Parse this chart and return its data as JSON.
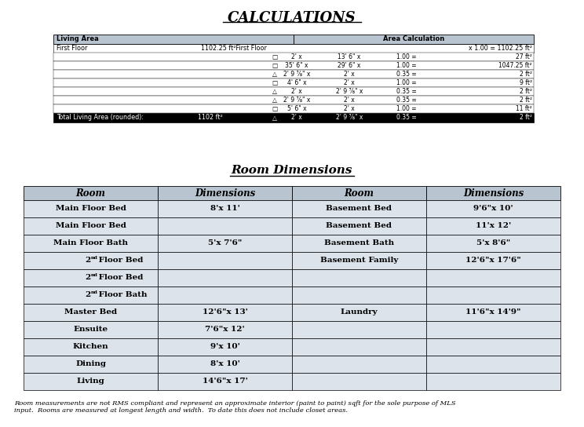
{
  "title": "CALCULATIONS",
  "calc_headers": [
    "Living Area",
    "Area Calculation"
  ],
  "first_floor_label": "First Floor",
  "first_floor_mid": "1102.25 ft²First Floor",
  "first_floor_right": "x 1.00 = 1102.25 ft²",
  "calc_rows": [
    {
      "□": true,
      "c1": "2' x",
      "c2": "13' 6\" x",
      "c3": "1.00 =",
      "c4": "27 ft²"
    },
    {
      "□": true,
      "c1": "35' 6\" x",
      "c2": "29' 6\" x",
      "c3": "1.00 =",
      "c4": "1047.25 ft²"
    },
    {
      "△": true,
      "c1": "2' 9 ⅞\" x",
      "c2": "2' x",
      "c3": "0.35 =",
      "c4": "2 ft²"
    },
    {
      "□": true,
      "c1": "4' 6\" x",
      "c2": "2' x",
      "c3": "1.00 =",
      "c4": "9 ft²"
    },
    {
      "△": true,
      "c1": "2' x",
      "c2": "2' 9 ⅞\" x",
      "c3": "0.35 =",
      "c4": "2 ft²"
    },
    {
      "△": true,
      "c1": "2' 9 ⅞\" x",
      "c2": "2' x",
      "c3": "0.35 =",
      "c4": "2 ft²"
    },
    {
      "□": true,
      "c1": "5' 6\" x",
      "c2": "2' x",
      "c3": "1.00 =",
      "c4": "11 ft²"
    }
  ],
  "calc_shapes": [
    "□",
    "□",
    "△",
    "□",
    "△",
    "△",
    "□"
  ],
  "calc_c1": [
    "2' x",
    "35' 6\" x",
    "2' 9 ⅞\" x",
    "4' 6\" x",
    "2' x",
    "2' 9 ⅞\" x",
    "5' 6\" x"
  ],
  "calc_c2": [
    "13' 6\" x",
    "29' 6\" x",
    "2' x",
    "2' x",
    "2' 9 ⅞\" x",
    "2' x",
    "2' x"
  ],
  "calc_c3": [
    "1.00 =",
    "1.00 =",
    "0.35 =",
    "1.00 =",
    "0.35 =",
    "0.35 =",
    "1.00 ="
  ],
  "calc_c4": [
    "27 ft²",
    "1047.25 ft²",
    "2 ft²",
    "9 ft²",
    "2 ft²",
    "2 ft²",
    "11 ft²"
  ],
  "total_label": "Total Living Area (rounded):",
  "total_value": "1102 ft²",
  "total_shape": "△",
  "total_c1": "2' x",
  "total_c2": "2' 9 ⅞\" x",
  "total_c3": "0.35 =",
  "total_c4": "2 ft²",
  "room_dim_title": "Room Dimensions",
  "room_headers": [
    "Room",
    "Dimensions",
    "Room",
    "Dimensions"
  ],
  "room_rows": [
    [
      "Main Floor Bed",
      "8'x 11'",
      "Basement Bed",
      "9'6\"x 10'"
    ],
    [
      "Main Floor Bed",
      "",
      "Basement Bed",
      "11'x 12'"
    ],
    [
      "Main Floor Bath",
      "5'x 7'6\"",
      "Basement Bath",
      "5'x 8'6\""
    ],
    [
      "2nd Floor Bed",
      "",
      "Basement Family",
      "12'6\"x 17'6\""
    ],
    [
      "2nd Floor Bed",
      "",
      "",
      ""
    ],
    [
      "2nd Floor Bath",
      "",
      "",
      ""
    ],
    [
      "Master Bed",
      "12'6\"x 13'",
      "Laundry",
      "11'6\"x 14'9\""
    ],
    [
      "Ensuite",
      "7'6\"x 12'",
      "",
      ""
    ],
    [
      "Kitchen",
      "9'x 10'",
      "",
      ""
    ],
    [
      "Dining",
      "8'x 10'",
      "",
      ""
    ],
    [
      "Living",
      "14'6\"x 17'",
      "",
      ""
    ]
  ],
  "room_rows_superscript": [
    false,
    false,
    false,
    true,
    true,
    true,
    false,
    false,
    false,
    false,
    false
  ],
  "footer_line1": "Room measurements are not RMS compliant and represent an approximate interior (paint to paint) sqft for the sole purpose of MLS",
  "footer_line2": "input.  Rooms are measured at longest length and width.  To date this does not include closet areas.",
  "header_bg": "#b8c4d0",
  "row_bg_light": "#dce3eb",
  "white": "#ffffff",
  "black": "#000000"
}
